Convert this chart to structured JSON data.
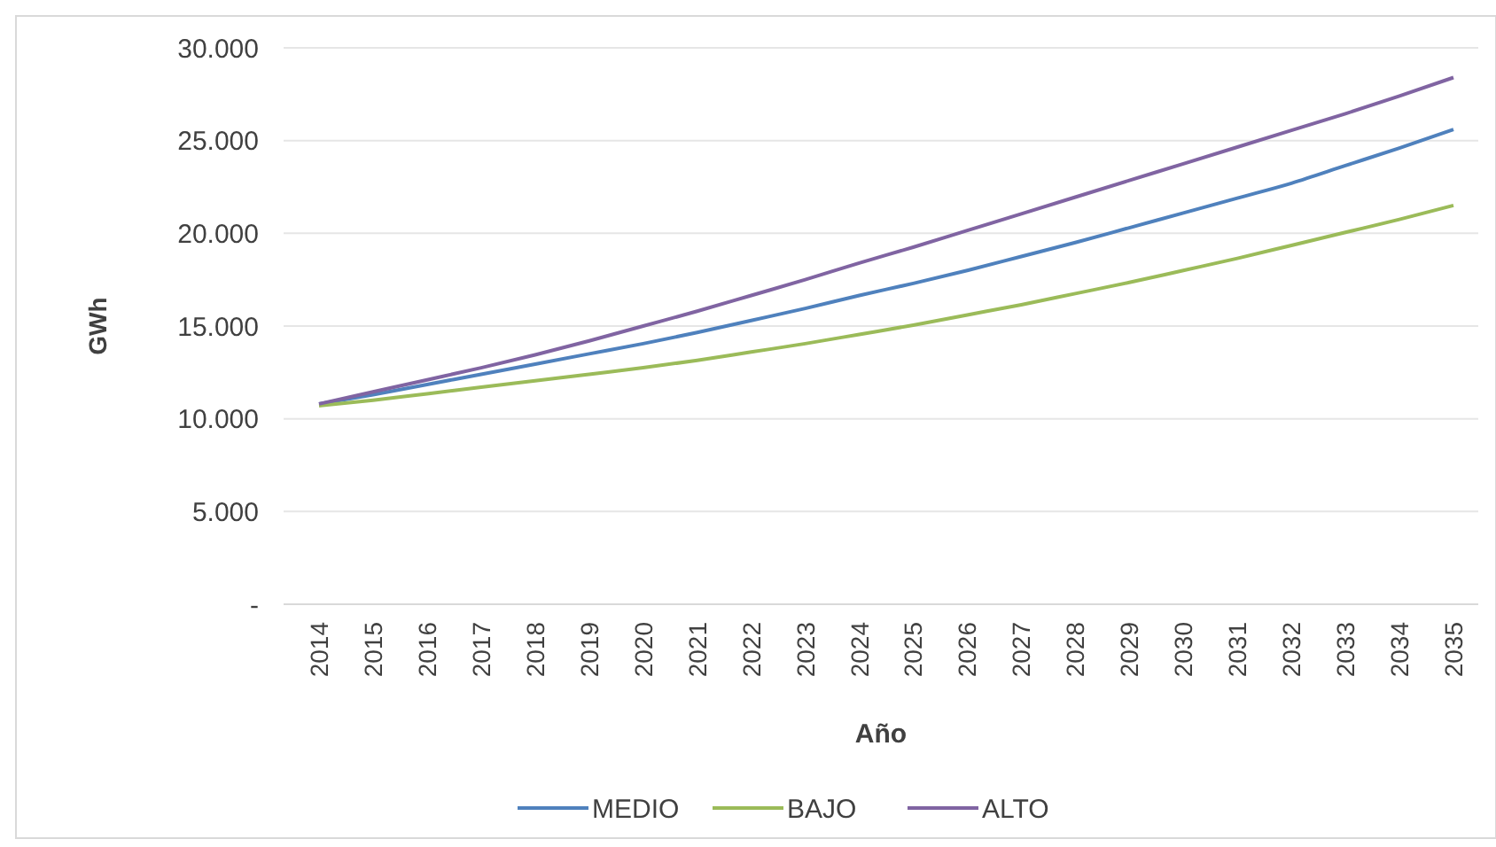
{
  "chart_data": {
    "type": "line",
    "xlabel": "Año",
    "ylabel": "GWh",
    "categories": [
      "2014",
      "2015",
      "2016",
      "2017",
      "2018",
      "2019",
      "2020",
      "2021",
      "2022",
      "2023",
      "2024",
      "2025",
      "2026",
      "2027",
      "2028",
      "2029",
      "2030",
      "2031",
      "2032",
      "2033",
      "2034",
      "2035"
    ],
    "series": [
      {
        "name": "MEDIO",
        "color": "#4f81bd",
        "values": [
          10800,
          11300,
          11850,
          12400,
          12950,
          13500,
          14050,
          14650,
          15300,
          15950,
          16650,
          17300,
          18000,
          18750,
          19500,
          20300,
          21100,
          21900,
          22700,
          23650,
          24600,
          25600
        ]
      },
      {
        "name": "BAJO",
        "color": "#9bbb59",
        "values": [
          10700,
          11000,
          11350,
          11700,
          12050,
          12400,
          12750,
          13150,
          13600,
          14050,
          14550,
          15050,
          15600,
          16150,
          16750,
          17350,
          18000,
          18650,
          19350,
          20050,
          20750,
          21500
        ]
      },
      {
        "name": "ALTO",
        "color": "#8064a2",
        "values": [
          10800,
          11450,
          12100,
          12750,
          13450,
          14200,
          15000,
          15800,
          16650,
          17500,
          18400,
          19250,
          20150,
          21050,
          21950,
          22850,
          23750,
          24650,
          25550,
          26450,
          27400,
          28400
        ]
      }
    ],
    "ylim": [
      0,
      30000
    ],
    "yticks": [
      {
        "value": 0,
        "label": "-"
      },
      {
        "value": 5000,
        "label": "5.000"
      },
      {
        "value": 10000,
        "label": "10.000"
      },
      {
        "value": 15000,
        "label": "15.000"
      },
      {
        "value": 20000,
        "label": "20.000"
      },
      {
        "value": 25000,
        "label": "25.000"
      },
      {
        "value": 30000,
        "label": "30.000"
      }
    ],
    "grid": "y",
    "legend": "bottom",
    "marker": "none",
    "line_style": "solid"
  }
}
